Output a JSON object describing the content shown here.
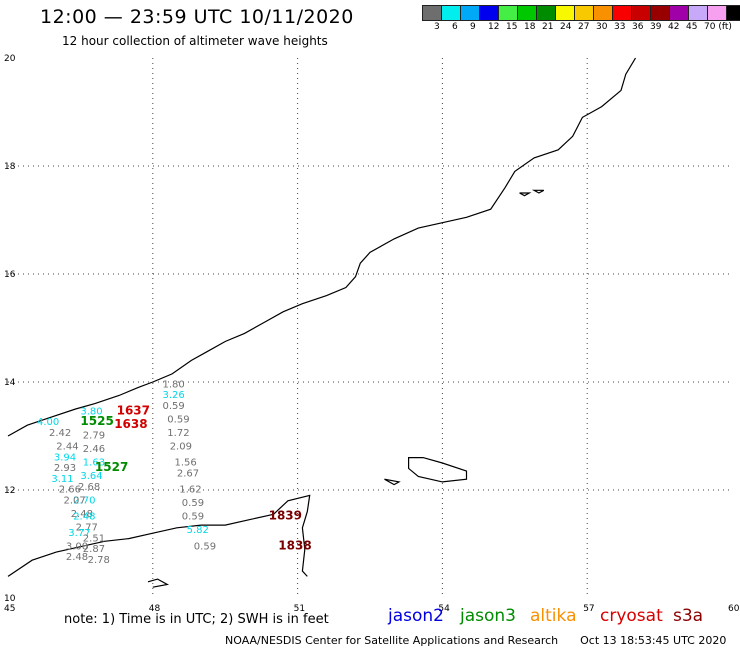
{
  "title": "12:00 — 23:59 UTC 10/11/2020",
  "subtitle": "12 hour collection of altimeter wave heights",
  "legend": {
    "colors": [
      "#6e6e6e",
      "#00eeee",
      "#00a8f8",
      "#0000ee",
      "#44ee44",
      "#00c800",
      "#008c00",
      "#f8f800",
      "#f8c800",
      "#f89000",
      "#f80000",
      "#c80000",
      "#980000",
      "#a000a8",
      "#c8a8f8",
      "#f8a0f0",
      "#000000"
    ],
    "labels": [
      "3",
      "6",
      "9",
      "12",
      "15",
      "18",
      "21",
      "24",
      "27",
      "30",
      "33",
      "36",
      "39",
      "42",
      "45",
      "70 (ft)"
    ]
  },
  "axes": {
    "lon_ticks": [
      "45",
      "48",
      "51",
      "54",
      "57",
      "60"
    ],
    "lat_ticks": [
      "20",
      "18",
      "16",
      "14",
      "12",
      "10"
    ]
  },
  "map": {
    "extent": {
      "lon": [
        45,
        60
      ],
      "lat": [
        10,
        20
      ]
    },
    "coastline": [
      [
        [
          45.0,
          13.0
        ],
        [
          45.4,
          13.2
        ],
        [
          45.9,
          13.35
        ],
        [
          46.4,
          13.5
        ],
        [
          46.8,
          13.6
        ],
        [
          47.3,
          13.75
        ],
        [
          47.7,
          13.9
        ],
        [
          48.0,
          14.0
        ],
        [
          48.4,
          14.15
        ],
        [
          48.8,
          14.4
        ],
        [
          49.1,
          14.55
        ],
        [
          49.5,
          14.75
        ],
        [
          49.9,
          14.9
        ],
        [
          50.3,
          15.1
        ],
        [
          50.7,
          15.3
        ],
        [
          51.1,
          15.45
        ],
        [
          51.6,
          15.6
        ],
        [
          52.0,
          15.75
        ],
        [
          52.2,
          15.95
        ],
        [
          52.3,
          16.2
        ],
        [
          52.5,
          16.4
        ],
        [
          53.0,
          16.65
        ],
        [
          53.5,
          16.85
        ],
        [
          54.0,
          16.95
        ],
        [
          54.5,
          17.05
        ],
        [
          55.0,
          17.2
        ],
        [
          55.3,
          17.6
        ],
        [
          55.5,
          17.9
        ],
        [
          55.9,
          18.15
        ],
        [
          56.4,
          18.3
        ],
        [
          56.7,
          18.55
        ],
        [
          56.9,
          18.9
        ],
        [
          57.3,
          19.1
        ],
        [
          57.7,
          19.4
        ],
        [
          57.8,
          19.7
        ],
        [
          58.0,
          20.0
        ]
      ],
      [
        [
          45.0,
          10.4
        ],
        [
          45.5,
          10.7
        ],
        [
          46.0,
          10.85
        ],
        [
          46.5,
          10.95
        ],
        [
          47.0,
          11.05
        ],
        [
          47.5,
          11.1
        ],
        [
          48.0,
          11.2
        ],
        [
          48.5,
          11.3
        ],
        [
          49.0,
          11.35
        ],
        [
          49.5,
          11.35
        ],
        [
          50.0,
          11.45
        ],
        [
          50.5,
          11.55
        ],
        [
          50.8,
          11.8
        ],
        [
          51.25,
          11.9
        ],
        [
          51.2,
          11.6
        ],
        [
          51.1,
          11.3
        ],
        [
          51.15,
          10.9
        ],
        [
          51.1,
          10.5
        ],
        [
          51.2,
          10.4
        ]
      ],
      [
        [
          47.9,
          10.3
        ],
        [
          48.1,
          10.35
        ],
        [
          48.3,
          10.25
        ],
        [
          48.0,
          10.2
        ]
      ]
    ],
    "islands": [
      [
        [
          53.3,
          12.6
        ],
        [
          53.6,
          12.6
        ],
        [
          54.0,
          12.5
        ],
        [
          54.5,
          12.35
        ],
        [
          54.5,
          12.2
        ],
        [
          54.0,
          12.15
        ],
        [
          53.5,
          12.25
        ],
        [
          53.3,
          12.4
        ],
        [
          53.3,
          12.6
        ]
      ],
      [
        [
          52.8,
          12.2
        ],
        [
          53.1,
          12.15
        ],
        [
          53.0,
          12.1
        ],
        [
          52.8,
          12.2
        ]
      ],
      [
        [
          55.6,
          17.5
        ],
        [
          55.8,
          17.5
        ],
        [
          55.7,
          17.45
        ]
      ],
      [
        [
          55.9,
          17.55
        ],
        [
          56.1,
          17.55
        ],
        [
          56.0,
          17.5
        ]
      ]
    ]
  },
  "observations": [
    {
      "text": "3.26",
      "lon": 48.2,
      "lat": 13.7,
      "color": "#00d8e8"
    },
    {
      "text": "1.80",
      "lon": 48.2,
      "lat": 13.9,
      "color": "#707070"
    },
    {
      "text": "0.59",
      "lon": 48.2,
      "lat": 13.5,
      "color": "#707070"
    },
    {
      "text": "0.59",
      "lon": 48.3,
      "lat": 13.25,
      "color": "#707070"
    },
    {
      "text": "1.72",
      "lon": 48.3,
      "lat": 13.0,
      "color": "#707070"
    },
    {
      "text": "2.09",
      "lon": 48.35,
      "lat": 12.75,
      "color": "#707070"
    },
    {
      "text": "1.56",
      "lon": 48.45,
      "lat": 12.45,
      "color": "#707070"
    },
    {
      "text": "2.67",
      "lon": 48.5,
      "lat": 12.25,
      "color": "#707070"
    },
    {
      "text": "1.62",
      "lon": 48.55,
      "lat": 11.95,
      "color": "#707070"
    },
    {
      "text": "0.59",
      "lon": 48.6,
      "lat": 11.7,
      "color": "#707070"
    },
    {
      "text": "0.59",
      "lon": 48.6,
      "lat": 11.45,
      "color": "#707070"
    },
    {
      "text": "5.82",
      "lon": 48.7,
      "lat": 11.2,
      "color": "#00d8e8"
    },
    {
      "text": "0.59",
      "lon": 48.85,
      "lat": 10.9,
      "color": "#707070"
    },
    {
      "text": "1839",
      "lon": 50.4,
      "lat": 11.45,
      "color": "#7a0000",
      "bold": true
    },
    {
      "text": "1838",
      "lon": 50.6,
      "lat": 10.9,
      "color": "#7a0000",
      "bold": true
    },
    {
      "text": "3.80",
      "lon": 46.5,
      "lat": 13.4,
      "color": "#00d8e8"
    },
    {
      "text": "1637",
      "lon": 47.25,
      "lat": 13.4,
      "color": "#d00000",
      "bold": true
    },
    {
      "text": "4.00",
      "lon": 45.6,
      "lat": 13.2,
      "color": "#00d8e8"
    },
    {
      "text": "1525",
      "lon": 46.5,
      "lat": 13.2,
      "color": "#008c00",
      "bold": true
    },
    {
      "text": "1638",
      "lon": 47.2,
      "lat": 13.15,
      "color": "#d00000",
      "bold": true
    },
    {
      "text": "2.42",
      "lon": 45.85,
      "lat": 13.0,
      "color": "#707070"
    },
    {
      "text": "2.79",
      "lon": 46.55,
      "lat": 12.95,
      "color": "#707070"
    },
    {
      "text": "2.44",
      "lon": 46.0,
      "lat": 12.75,
      "color": "#707070"
    },
    {
      "text": "2.46",
      "lon": 46.55,
      "lat": 12.7,
      "color": "#707070"
    },
    {
      "text": "3.94",
      "lon": 45.95,
      "lat": 12.55,
      "color": "#00d8e8"
    },
    {
      "text": "1.63",
      "lon": 46.55,
      "lat": 12.45,
      "color": "#00d8e8"
    },
    {
      "text": "2.93",
      "lon": 45.95,
      "lat": 12.35,
      "color": "#707070"
    },
    {
      "text": "1527",
      "lon": 46.8,
      "lat": 12.35,
      "color": "#008c00",
      "bold": true
    },
    {
      "text": "3.64",
      "lon": 46.5,
      "lat": 12.2,
      "color": "#00d8e8"
    },
    {
      "text": "3.11",
      "lon": 45.9,
      "lat": 12.15,
      "color": "#00d8e8"
    },
    {
      "text": "2.68",
      "lon": 46.45,
      "lat": 12.0,
      "color": "#707070"
    },
    {
      "text": "2.66",
      "lon": 46.05,
      "lat": 11.95,
      "color": "#707070"
    },
    {
      "text": "2.70",
      "lon": 46.35,
      "lat": 11.75,
      "color": "#00d8e8"
    },
    {
      "text": "2.07",
      "lon": 46.15,
      "lat": 11.75,
      "color": "#707070"
    },
    {
      "text": "2.48",
      "lon": 46.3,
      "lat": 11.5,
      "color": "#707070"
    },
    {
      "text": "2.48",
      "lon": 46.35,
      "lat": 11.45,
      "color": "#00d8e8"
    },
    {
      "text": "2.77",
      "lon": 46.4,
      "lat": 11.25,
      "color": "#707070"
    },
    {
      "text": "3.77",
      "lon": 46.25,
      "lat": 11.15,
      "color": "#00d8e8"
    },
    {
      "text": "2.51",
      "lon": 46.55,
      "lat": 11.05,
      "color": "#707070"
    },
    {
      "text": "3.00",
      "lon": 46.2,
      "lat": 10.9,
      "color": "#707070"
    },
    {
      "text": "2.87",
      "lon": 46.55,
      "lat": 10.85,
      "color": "#707070"
    },
    {
      "text": "2.48",
      "lon": 46.2,
      "lat": 10.7,
      "color": "#707070"
    },
    {
      "text": "2.78",
      "lon": 46.65,
      "lat": 10.65,
      "color": "#707070"
    }
  ],
  "note": "note: 1) Time is in UTC; 2) SWH is in feet",
  "satellites": [
    {
      "name": "jason2",
      "color": "#0000e0"
    },
    {
      "name": "jason3",
      "color": "#008c00"
    },
    {
      "name": "altika",
      "color": "#f89000"
    },
    {
      "name": "cryosat",
      "color": "#d80000"
    },
    {
      "name": "s3a",
      "color": "#8c0000"
    }
  ],
  "credit": "NOAA/NESDIS Center for Satellite Applications and Research",
  "timestamp": "Oct 13 18:53:45 UTC 2020"
}
